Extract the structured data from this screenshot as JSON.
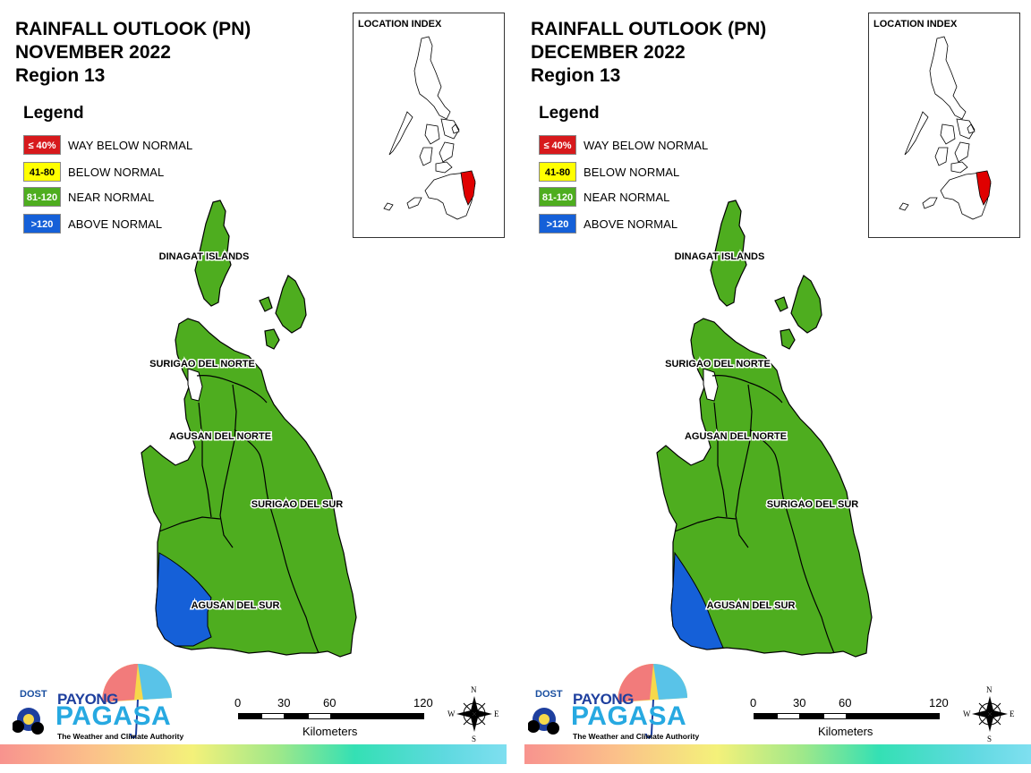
{
  "legend": {
    "title": "Legend",
    "items": [
      {
        "code": "≤ 40%",
        "label": "WAY BELOW NORMAL",
        "color": "#d7191c",
        "text_color": "#ffffff"
      },
      {
        "code": "41-80",
        "label": "BELOW NORMAL",
        "color": "#ffff00",
        "text_color": "#000000"
      },
      {
        "code": "81-120",
        "label": "NEAR NORMAL",
        "color": "#4ead1f",
        "text_color": "#ffffff"
      },
      {
        "code": ">120",
        "label": "ABOVE NORMAL",
        "color": "#1560d8",
        "text_color": "#ffffff"
      }
    ]
  },
  "location_index": {
    "label": "LOCATION INDEX",
    "highlight_color": "#e00000"
  },
  "provinces": [
    "DINAGAT ISLANDS",
    "SURIGAO DEL NORTE",
    "AGUSAN DEL NORTE",
    "SURIGAO DEL SUR",
    "AGUSAN DEL SUR"
  ],
  "panels": [
    {
      "title_line1": "RAINFALL OUTLOOK (PN)",
      "title_line2": "NOVEMBER 2022",
      "title_line3": "Region 13",
      "above_normal_extent": "larger"
    },
    {
      "title_line1": "RAINFALL OUTLOOK (PN)",
      "title_line2": "DECEMBER 2022",
      "title_line3": "Region 13",
      "above_normal_extent": "smaller"
    }
  ],
  "scale_bar": {
    "ticks": [
      "0",
      "30",
      "60",
      "120"
    ],
    "units": "Kilometers"
  },
  "compass": {
    "n": "N",
    "s": "S",
    "e": "E",
    "w": "W"
  },
  "logo": {
    "dost": "DOST",
    "payong": "PAYONG",
    "pagasa": "PAGASA",
    "tagline": "The Weather and Climate Authority"
  }
}
